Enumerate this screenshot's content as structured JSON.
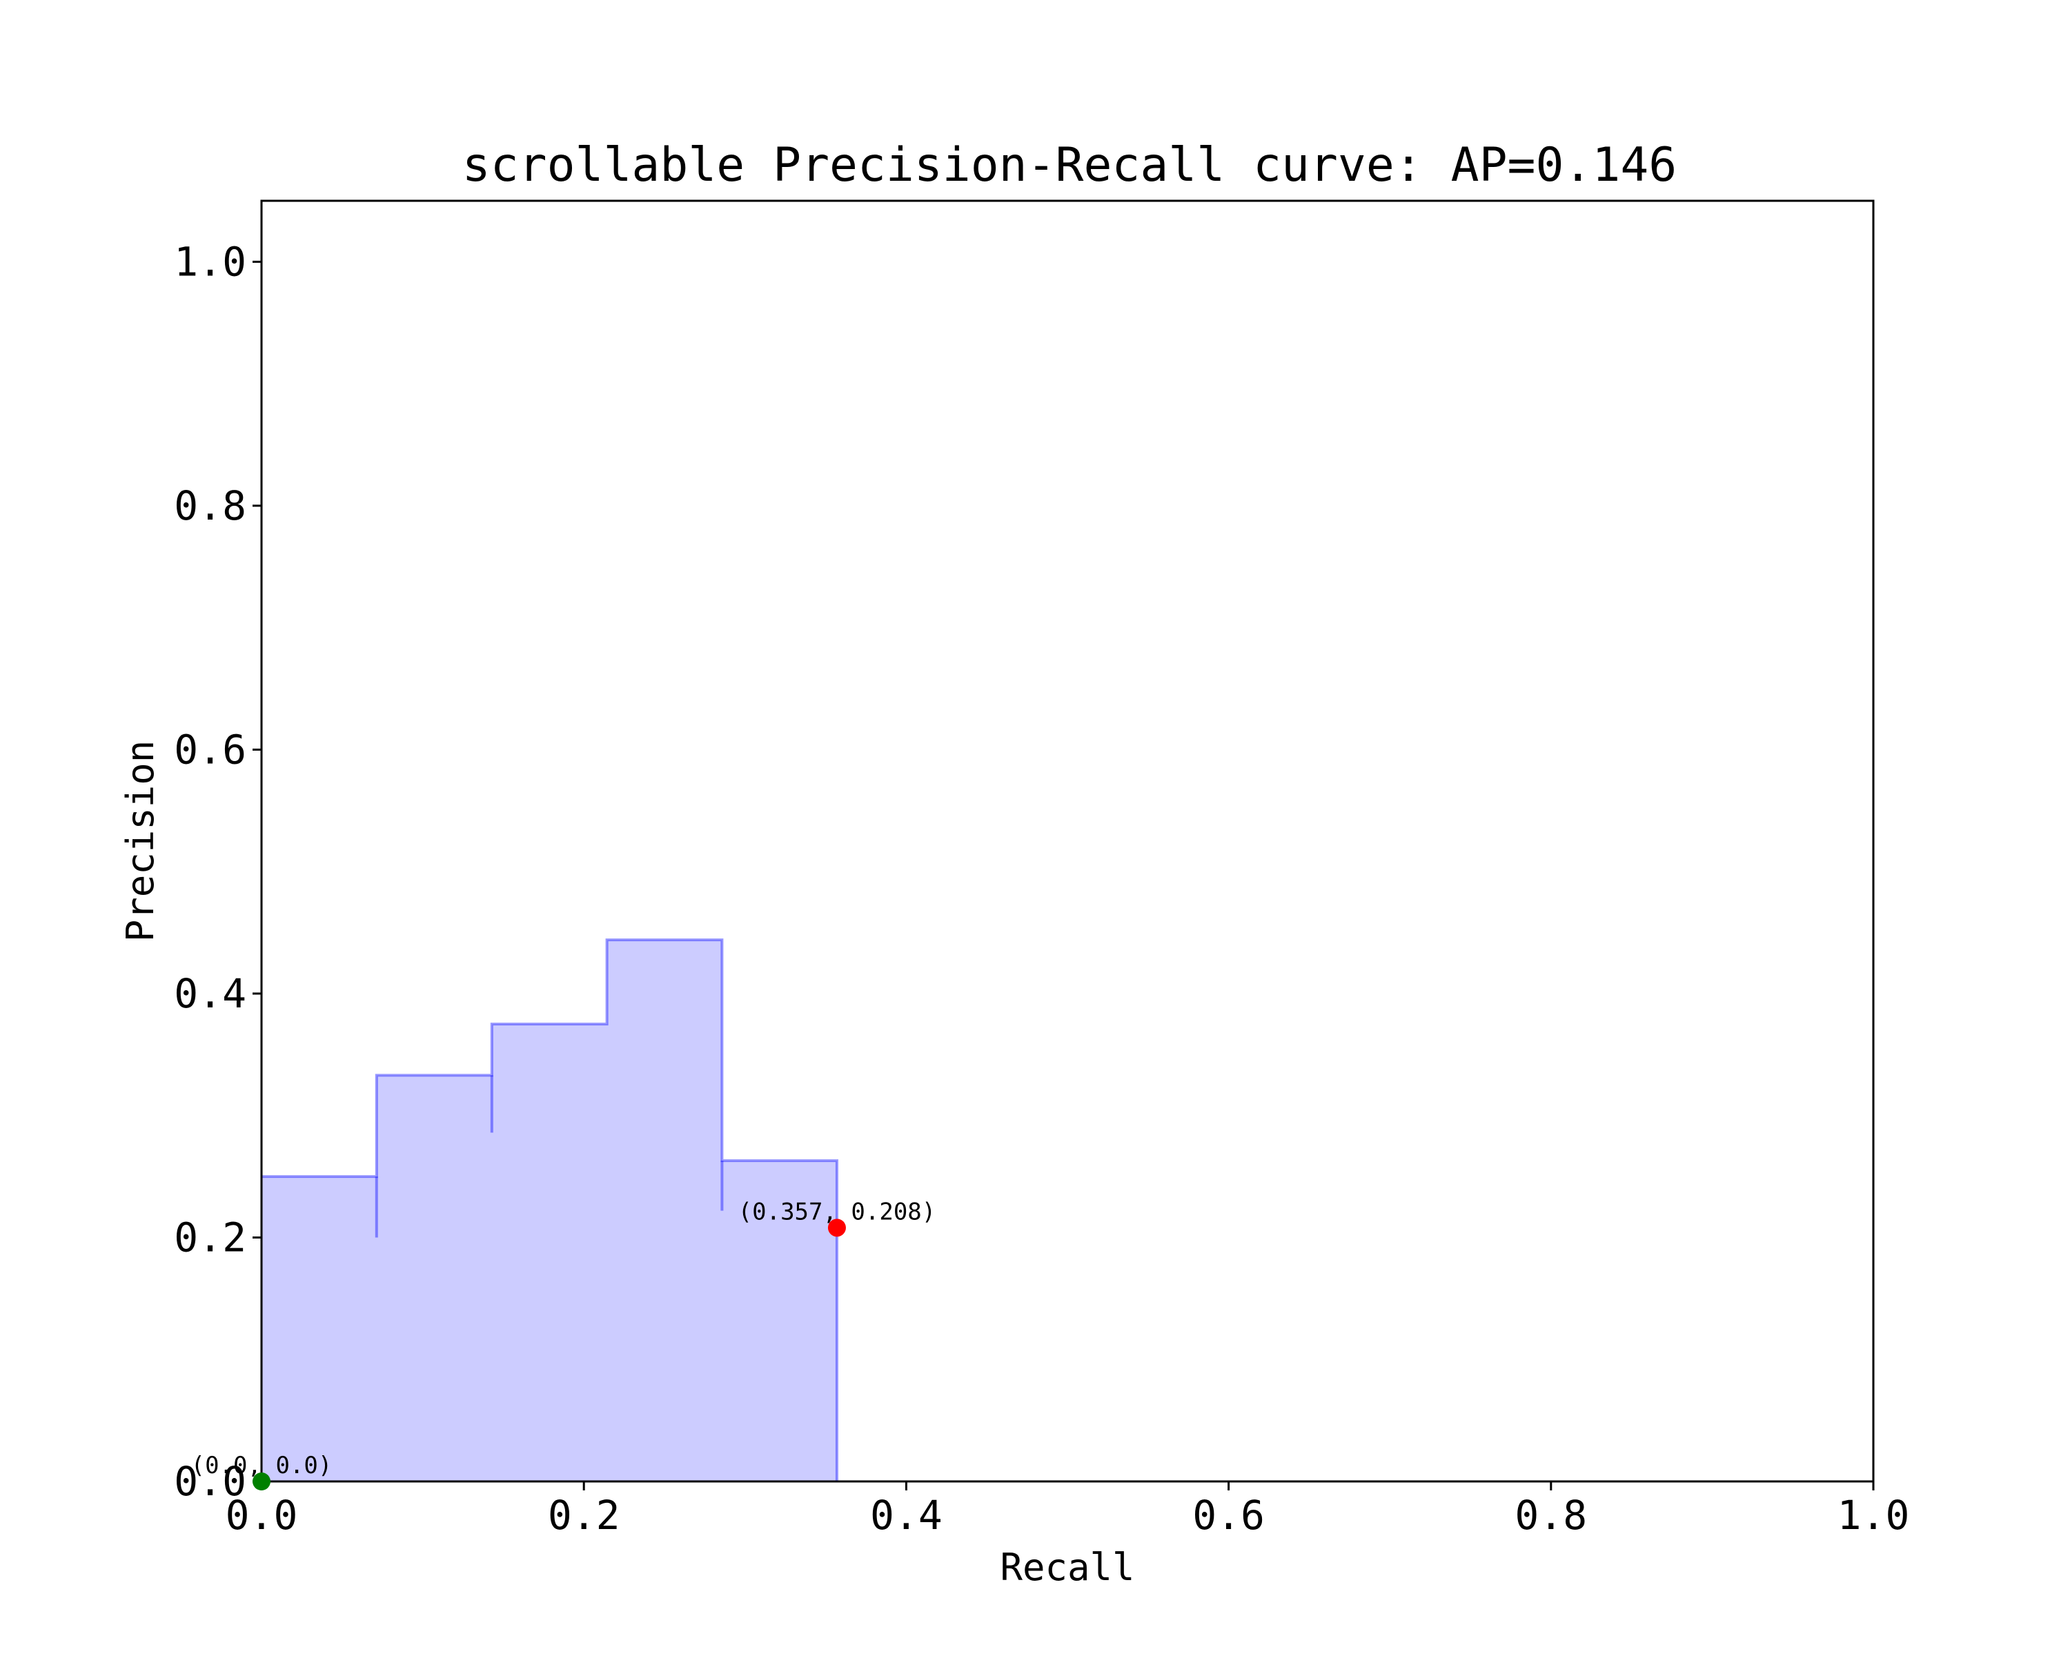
{
  "chart_data": {
    "type": "area",
    "title": "scrollable Precision-Recall curve: AP=0.146",
    "xlabel": "Recall",
    "ylabel": "Precision",
    "xlim": [
      0.0,
      1.0
    ],
    "ylim": [
      0.0,
      1.05
    ],
    "xticks": [
      "0.0",
      "0.2",
      "0.4",
      "0.6",
      "0.8",
      "1.0"
    ],
    "yticks": [
      "0.0",
      "0.2",
      "0.4",
      "0.6",
      "0.8",
      "1.0"
    ],
    "grid": false,
    "series": [
      {
        "x": [
          0.0,
          0.0714,
          0.0714,
          0.1429,
          0.1429,
          0.2143,
          0.2143,
          0.2857,
          0.2857,
          0.357,
          0.357
        ],
        "y": [
          0.25,
          0.25,
          0.333,
          0.333,
          0.375,
          0.375,
          0.444,
          0.444,
          0.263,
          0.263,
          0.0
        ],
        "drops": [
          {
            "x": 0.0714,
            "y_low": 0.2,
            "y_high": 0.25
          },
          {
            "x": 0.1429,
            "y_low": 0.286,
            "y_high": 0.333
          },
          {
            "x": 0.2857,
            "y_low": 0.222,
            "y_high": 0.263
          }
        ],
        "color": "#0000ff",
        "fill_color": "#ccccff"
      }
    ],
    "points": [
      {
        "x": 0.357,
        "y": 0.208,
        "label": "(0.357, 0.208)",
        "color": "#ff0000"
      },
      {
        "x": 0.0,
        "y": 0.0,
        "label": "(0.0, 0.0)",
        "color": "#008000"
      }
    ]
  }
}
